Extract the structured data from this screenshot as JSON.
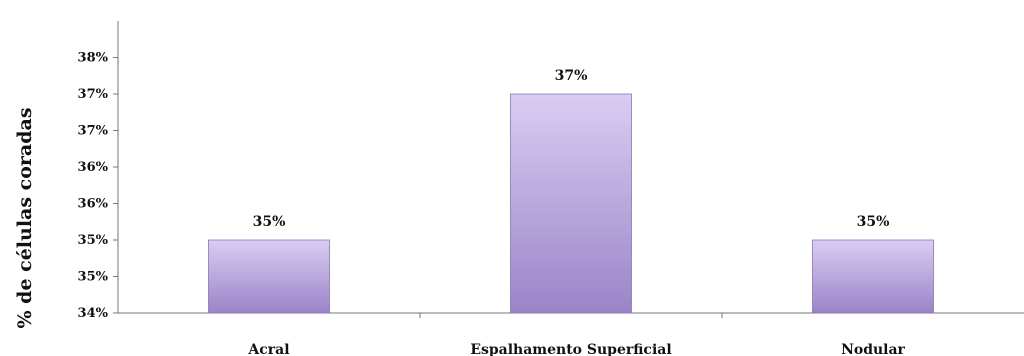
{
  "chart_data": {
    "type": "bar",
    "title": "",
    "xlabel": "",
    "ylabel": "% de células coradas",
    "categories": [
      "Acral",
      "Espalhamento Superficial",
      "Nodular"
    ],
    "values": [
      0.35,
      0.37,
      0.35
    ],
    "value_labels": [
      "35%",
      "37%",
      "35%"
    ],
    "ylim": [
      0.34,
      0.38
    ],
    "yticks": [
      {
        "value": 0.34,
        "label": "34%"
      },
      {
        "value": 0.345,
        "label": "35%"
      },
      {
        "value": 0.35,
        "label": "35%"
      },
      {
        "value": 0.355,
        "label": "36%"
      },
      {
        "value": 0.36,
        "label": "36%"
      },
      {
        "value": 0.365,
        "label": "37%"
      },
      {
        "value": 0.37,
        "label": "37%"
      },
      {
        "value": 0.375,
        "label": "38%"
      }
    ],
    "grid": false,
    "legend": "none",
    "colors": {
      "bar_top": "#d9cdf2",
      "bar_bottom": "#9a84c8",
      "bar_edge": "#8a76b8"
    }
  }
}
